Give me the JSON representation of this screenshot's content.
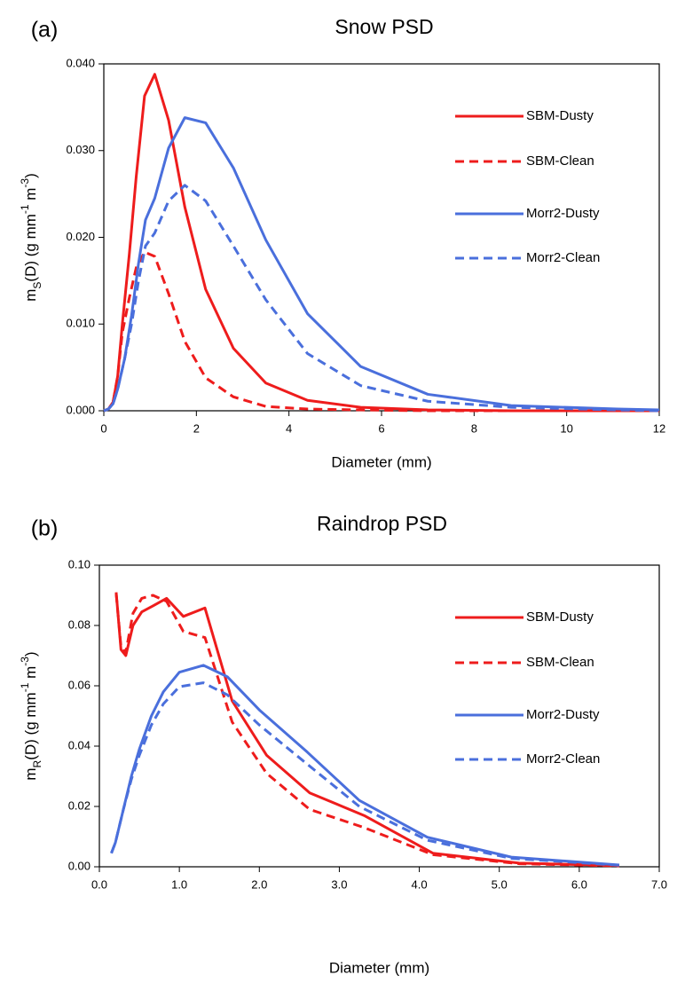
{
  "chart_data": [
    {
      "type": "line",
      "panel_label": "(a)",
      "title": "Snow PSD",
      "xlabel": "Diameter (mm)",
      "ylabel": [
        {
          "text": "m"
        },
        {
          "text": "S",
          "shift": "sub"
        },
        {
          "text": "(D) (g mm"
        },
        {
          "text": "-1",
          "shift": "super"
        },
        {
          "text": " m"
        },
        {
          "text": "-3",
          "shift": "super"
        },
        {
          "text": ")"
        }
      ],
      "xlim": [
        0,
        12
      ],
      "xticks": [
        0,
        2,
        4,
        6,
        8,
        10,
        12
      ],
      "ylim": [
        0,
        0.04
      ],
      "yticks": [
        {
          "value": 0,
          "label": "0.000"
        },
        {
          "value": 0.01,
          "label": "0.010"
        },
        {
          "value": 0.02,
          "label": "0.020"
        },
        {
          "value": 0.03,
          "label": "0.030"
        },
        {
          "value": 0.04,
          "label": "0.040"
        }
      ],
      "legend": "upper right",
      "series": [
        {
          "name": "SBM-Dusty",
          "color": "#ee1c1c",
          "linestyle": "solid",
          "x": [
            0,
            0.1,
            0.2,
            0.3,
            0.4,
            0.55,
            0.7,
            0.88,
            1.1,
            1.4,
            1.75,
            2.2,
            2.8,
            3.5,
            4.4,
            5.55,
            7.0,
            8.8,
            11.1,
            12
          ],
          "values": [
            0,
            0.0002,
            0.001,
            0.004,
            0.01,
            0.018,
            0.027,
            0.0363,
            0.0388,
            0.0335,
            0.0235,
            0.014,
            0.0072,
            0.0032,
            0.0012,
            0.0004,
            0.0001,
            0,
            0,
            0
          ]
        },
        {
          "name": "SBM-Clean",
          "color": "#ee1c1c",
          "linestyle": "dashed",
          "x": [
            0,
            0.1,
            0.2,
            0.3,
            0.4,
            0.55,
            0.7,
            0.88,
            1.1,
            1.4,
            1.75,
            2.2,
            2.8,
            3.5,
            4.4,
            5.55,
            7.0,
            8.8,
            11.1,
            12
          ],
          "values": [
            0,
            0.0002,
            0.001,
            0.004,
            0.009,
            0.013,
            0.0165,
            0.0183,
            0.0178,
            0.0135,
            0.008,
            0.0038,
            0.0016,
            0.0005,
            0.0002,
            0.0001,
            0,
            0,
            0,
            0
          ]
        },
        {
          "name": "Morr2-Dusty",
          "color": "#4a6fdc",
          "linestyle": "solid",
          "x": [
            0,
            0.1,
            0.2,
            0.3,
            0.45,
            0.6,
            0.75,
            0.9,
            1.1,
            1.4,
            1.75,
            2.2,
            2.8,
            3.5,
            4.4,
            5.55,
            7.0,
            8.8,
            11.1,
            12
          ],
          "values": [
            0,
            0.0002,
            0.0008,
            0.0025,
            0.006,
            0.011,
            0.017,
            0.022,
            0.0245,
            0.0303,
            0.0338,
            0.0332,
            0.028,
            0.0197,
            0.0112,
            0.0051,
            0.0019,
            0.0006,
            0.0002,
            0.0001
          ]
        },
        {
          "name": "Morr2-Clean",
          "color": "#4a6fdc",
          "linestyle": "dashed",
          "x": [
            0,
            0.1,
            0.2,
            0.3,
            0.45,
            0.6,
            0.75,
            0.9,
            1.1,
            1.4,
            1.75,
            2.2,
            2.8,
            3.5,
            4.4,
            5.55,
            7.0,
            8.8,
            11.1,
            12
          ],
          "values": [
            0,
            0.0002,
            0.0008,
            0.0025,
            0.006,
            0.01,
            0.015,
            0.019,
            0.0205,
            0.0242,
            0.026,
            0.0242,
            0.019,
            0.0128,
            0.0066,
            0.0029,
            0.0011,
            0.0004,
            0.0001,
            0
          ]
        }
      ]
    },
    {
      "type": "line",
      "panel_label": "(b)",
      "title": "Raindrop PSD",
      "xlabel": "Diameter (mm)",
      "ylabel": [
        {
          "text": "m"
        },
        {
          "text": "R",
          "shift": "sub"
        },
        {
          "text": "(D) (g mm"
        },
        {
          "text": "-1",
          "shift": "super"
        },
        {
          "text": " m"
        },
        {
          "text": "-3",
          "shift": "super"
        },
        {
          "text": ")"
        }
      ],
      "xlim": [
        0,
        7
      ],
      "xticks": [
        {
          "value": 0,
          "label": "0.0"
        },
        {
          "value": 1,
          "label": "1.0"
        },
        {
          "value": 2,
          "label": "2.0"
        },
        {
          "value": 3,
          "label": "3.0"
        },
        {
          "value": 4,
          "label": "4.0"
        },
        {
          "value": 5,
          "label": "5.0"
        },
        {
          "value": 6,
          "label": "6.0"
        },
        {
          "value": 7,
          "label": "7.0"
        }
      ],
      "ylim": [
        0,
        0.1
      ],
      "yticks": [
        {
          "value": 0,
          "label": "0.00"
        },
        {
          "value": 0.02,
          "label": "0.02"
        },
        {
          "value": 0.04,
          "label": "0.04"
        },
        {
          "value": 0.06,
          "label": "0.06"
        },
        {
          "value": 0.08,
          "label": "0.08"
        },
        {
          "value": 0.1,
          "label": "0.10"
        }
      ],
      "legend": "upper right",
      "series": [
        {
          "name": "SBM-Dusty",
          "color": "#ee1c1c",
          "linestyle": "solid",
          "x": [
            0.21,
            0.27,
            0.33,
            0.42,
            0.53,
            0.67,
            0.84,
            1.05,
            1.32,
            1.66,
            2.09,
            2.63,
            3.31,
            4.17,
            5.25,
            6.5
          ],
          "values": [
            0.091,
            0.072,
            0.07,
            0.08,
            0.0845,
            0.0865,
            0.089,
            0.083,
            0.0858,
            0.055,
            0.037,
            0.0245,
            0.017,
            0.0045,
            0.0012,
            0.0004
          ]
        },
        {
          "name": "SBM-Clean",
          "color": "#ee1c1c",
          "linestyle": "dashed",
          "x": [
            0.21,
            0.27,
            0.33,
            0.42,
            0.53,
            0.67,
            0.84,
            1.05,
            1.32,
            1.66,
            2.09,
            2.63,
            3.31,
            4.17,
            5.25,
            6.5
          ],
          "values": [
            0.0905,
            0.073,
            0.071,
            0.084,
            0.089,
            0.09,
            0.088,
            0.078,
            0.076,
            0.048,
            0.031,
            0.019,
            0.013,
            0.004,
            0.001,
            0.0003
          ]
        },
        {
          "name": "Morr2-Dusty",
          "color": "#4a6fdc",
          "linestyle": "solid",
          "x": [
            0.15,
            0.2,
            0.3,
            0.4,
            0.5,
            0.65,
            0.8,
            1.0,
            1.3,
            1.6,
            2.0,
            2.6,
            3.25,
            4.1,
            5.15,
            6.5
          ],
          "values": [
            0.0045,
            0.008,
            0.019,
            0.03,
            0.039,
            0.05,
            0.058,
            0.0645,
            0.0668,
            0.063,
            0.052,
            0.038,
            0.022,
            0.0098,
            0.0032,
            0.0006
          ]
        },
        {
          "name": "Morr2-Clean",
          "color": "#4a6fdc",
          "linestyle": "dashed",
          "x": [
            0.15,
            0.2,
            0.3,
            0.4,
            0.5,
            0.65,
            0.8,
            1.0,
            1.3,
            1.6,
            2.0,
            2.6,
            3.25,
            4.1,
            5.15,
            6.5
          ],
          "values": [
            0.0045,
            0.008,
            0.019,
            0.029,
            0.037,
            0.047,
            0.054,
            0.0597,
            0.061,
            0.057,
            0.047,
            0.034,
            0.02,
            0.0088,
            0.0028,
            0.0005
          ]
        }
      ]
    }
  ]
}
